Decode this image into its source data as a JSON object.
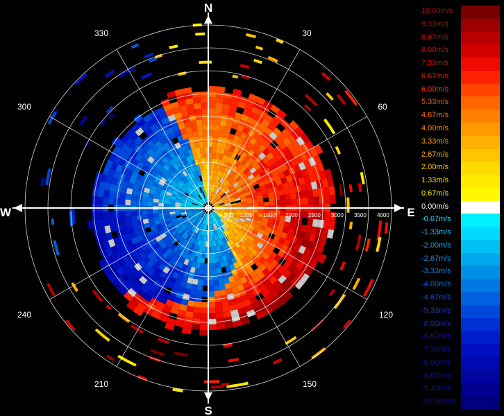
{
  "radar": {
    "cardinals": {
      "north": "N",
      "east": "E",
      "south": "S",
      "west": "W"
    },
    "azimuth_labels": [
      {
        "deg": 30,
        "label": "30"
      },
      {
        "deg": 60,
        "label": "60"
      },
      {
        "deg": 120,
        "label": "120"
      },
      {
        "deg": 150,
        "label": "150"
      },
      {
        "deg": 210,
        "label": "210"
      },
      {
        "deg": 240,
        "label": "240"
      },
      {
        "deg": 300,
        "label": "300"
      },
      {
        "deg": 330,
        "label": "330"
      }
    ],
    "range_rings": [
      "500",
      "1000",
      "1500",
      "2000",
      "2500",
      "3000",
      "3500",
      "4000"
    ]
  },
  "legend": {
    "entries": [
      {
        "label": "10.00m/s",
        "label_color": "#b01010",
        "color": "#7a0000"
      },
      {
        "label": "9.33m/s",
        "label_color": "#b01010",
        "color": "#9c0000"
      },
      {
        "label": "8.67m/s",
        "label_color": "#c01010",
        "color": "#b80000"
      },
      {
        "label": "8.00m/s",
        "label_color": "#d01010",
        "color": "#d40000"
      },
      {
        "label": "7.33m/s",
        "label_color": "#e01010",
        "color": "#ee0a00"
      },
      {
        "label": "6.67m/s",
        "label_color": "#f01e00",
        "color": "#ff2200"
      },
      {
        "label": "6.00m/s",
        "label_color": "#ff3c00",
        "color": "#ff4400"
      },
      {
        "label": "5.33m/s",
        "label_color": "#ff5a00",
        "color": "#ff6600"
      },
      {
        "label": "4.67m/s",
        "label_color": "#ff7000",
        "color": "#ff8000"
      },
      {
        "label": "4.00m/s",
        "label_color": "#ff8c00",
        "color": "#ff9a00"
      },
      {
        "label": "3.33m/s",
        "label_color": "#ffa000",
        "color": "#ffb000"
      },
      {
        "label": "2.67m/s",
        "label_color": "#ffb400",
        "color": "#ffc600"
      },
      {
        "label": "2.00m/s",
        "label_color": "#ffc800",
        "color": "#ffda00"
      },
      {
        "label": "1.33m/s",
        "label_color": "#ffdc00",
        "color": "#ffea00"
      },
      {
        "label": "0.67m/s",
        "label_color": "#ffee00",
        "color": "#fff800"
      },
      {
        "label": "0.00m/s",
        "label_color": "#ffffff",
        "color": "#ffffff"
      },
      {
        "label": "-0.67m/s",
        "label_color": "#20d8ff",
        "color": "#00f0ff"
      },
      {
        "label": "-1.33m/s",
        "label_color": "#10c4f8",
        "color": "#00d8ff"
      },
      {
        "label": "-2.00m/s",
        "label_color": "#10acf0",
        "color": "#00c0f4"
      },
      {
        "label": "-2.67m/s",
        "label_color": "#1094e8",
        "color": "#00a8ec"
      },
      {
        "label": "-3.33m/s",
        "label_color": "#107ce0",
        "color": "#0090e8"
      },
      {
        "label": "-4.00m/s",
        "label_color": "#1066d8",
        "color": "#0078e4"
      },
      {
        "label": "-4.67m/s",
        "label_color": "#1050d0",
        "color": "#0060e0"
      },
      {
        "label": "-5.33m/s",
        "label_color": "#103cc8",
        "color": "#0048dc"
      },
      {
        "label": "-6.00m/s",
        "label_color": "#1028c0",
        "color": "#0030d4"
      },
      {
        "label": "-6.67m/s",
        "label_color": "#1018b8",
        "color": "#001ccc"
      },
      {
        "label": "-7.33m/s",
        "label_color": "#1010b0",
        "color": "#0010c0"
      },
      {
        "label": "-8.00m/s",
        "label_color": "#1010a8",
        "color": "#0008b0"
      },
      {
        "label": "-8.67m/s",
        "label_color": "#1010a0",
        "color": "#0004a0"
      },
      {
        "label": "-9.33m/s",
        "label_color": "#101098",
        "color": "#000090"
      },
      {
        "label": "-10.00m/s",
        "label_color": "#101090",
        "color": "#00007c"
      }
    ]
  }
}
